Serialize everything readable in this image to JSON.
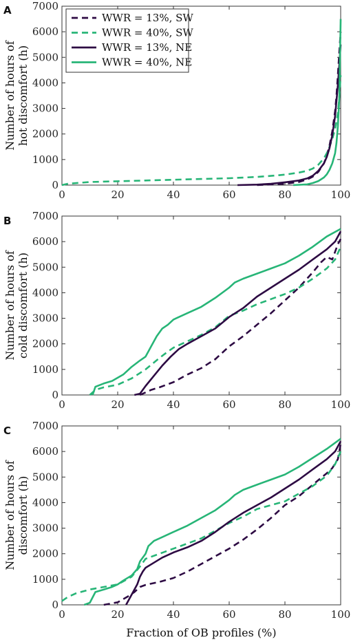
{
  "colors": {
    "dark_purple": "#2d0a43",
    "green": "#27b577"
  },
  "legend": {
    "placement": "top-left",
    "entries": [
      {
        "label": "WWR = 13%, SW",
        "color": "#2d0a43",
        "style": "dashed"
      },
      {
        "label": "WWR = 40%, SW",
        "color": "#27b577",
        "style": "dashed"
      },
      {
        "label": "WWR = 13%, NE",
        "color": "#2d0a43",
        "style": "solid"
      },
      {
        "label": "WWR = 40%, NE",
        "color": "#27b577",
        "style": "solid"
      }
    ]
  },
  "chart_data": [
    {
      "type": "line",
      "panel": "A",
      "ylabel_lines": [
        "Number of hours of",
        "hot discomfort (h)"
      ],
      "xlabel": "",
      "xlim": [
        0,
        100
      ],
      "ylim": [
        0,
        7000
      ],
      "xticks": [
        0,
        20,
        40,
        60,
        80,
        100
      ],
      "yticks": [
        0,
        1000,
        2000,
        3000,
        4000,
        5000,
        6000,
        7000
      ],
      "series": [
        {
          "name": "WWR = 13%, SW",
          "x": [
            70,
            80,
            85,
            88,
            90,
            92,
            94,
            95,
            96,
            97,
            98,
            98.5,
            99,
            99.5,
            100
          ],
          "y": [
            0,
            50,
            120,
            220,
            330,
            520,
            850,
            1150,
            1550,
            2100,
            2900,
            3500,
            4300,
            5200,
            6000
          ]
        },
        {
          "name": "WWR = 40%, SW",
          "x": [
            0,
            2,
            10,
            20,
            30,
            40,
            50,
            60,
            70,
            75,
            80,
            85,
            88,
            90,
            92,
            94,
            95,
            96,
            97,
            98,
            99,
            99.5,
            100
          ],
          "y": [
            0,
            50,
            120,
            150,
            180,
            210,
            240,
            270,
            320,
            360,
            410,
            490,
            560,
            650,
            800,
            1050,
            1250,
            1500,
            1800,
            2200,
            2800,
            3400,
            4300
          ]
        },
        {
          "name": "WWR = 13%, NE",
          "x": [
            63,
            70,
            75,
            80,
            85,
            88,
            90,
            92,
            94,
            95,
            96,
            97,
            98,
            98.5,
            99,
            99.5,
            100
          ],
          "y": [
            0,
            20,
            50,
            110,
            180,
            260,
            370,
            560,
            850,
            1100,
            1450,
            1950,
            2700,
            3300,
            3900,
            4700,
            5500
          ]
        },
        {
          "name": "WWR = 40%, NE",
          "x": [
            83,
            88,
            90,
            92,
            94,
            95,
            96,
            97,
            98,
            98.5,
            99,
            99.5,
            100
          ],
          "y": [
            0,
            30,
            80,
            160,
            300,
            420,
            600,
            850,
            1250,
            1650,
            2300,
            3400,
            6500
          ]
        }
      ]
    },
    {
      "type": "line",
      "panel": "B",
      "ylabel_lines": [
        "Number of hours of",
        "cold discomfort (h)"
      ],
      "xlabel": "",
      "xlim": [
        0,
        100
      ],
      "ylim": [
        0,
        7000
      ],
      "xticks": [
        0,
        20,
        40,
        60,
        80,
        100
      ],
      "yticks": [
        0,
        1000,
        2000,
        3000,
        4000,
        5000,
        6000,
        7000
      ],
      "series": [
        {
          "name": "WWR = 13%, SW",
          "x": [
            28,
            30,
            32,
            35,
            40,
            45,
            50,
            55,
            60,
            65,
            70,
            75,
            80,
            85,
            90,
            93,
            95,
            97,
            99,
            100
          ],
          "y": [
            0,
            100,
            200,
            300,
            500,
            800,
            1050,
            1400,
            1900,
            2300,
            2750,
            3200,
            3700,
            4200,
            4800,
            5200,
            5400,
            5300,
            5900,
            6100
          ]
        },
        {
          "name": "WWR = 40%, SW",
          "x": [
            10,
            12,
            15,
            20,
            25,
            30,
            35,
            38,
            40,
            45,
            50,
            55,
            60,
            65,
            70,
            75,
            80,
            85,
            90,
            95,
            98,
            100
          ],
          "y": [
            0,
            200,
            300,
            400,
            650,
            1000,
            1450,
            1700,
            1850,
            2100,
            2350,
            2650,
            3100,
            3300,
            3550,
            3750,
            3950,
            4200,
            4550,
            4950,
            5300,
            5800
          ]
        },
        {
          "name": "WWR = 13%, NE",
          "x": [
            26,
            28,
            30,
            33,
            36,
            39,
            42,
            45,
            50,
            55,
            60,
            65,
            70,
            75,
            80,
            85,
            90,
            95,
            98,
            100
          ],
          "y": [
            0,
            50,
            350,
            750,
            1150,
            1500,
            1800,
            2000,
            2300,
            2600,
            3050,
            3400,
            3850,
            4200,
            4550,
            4900,
            5300,
            5700,
            6000,
            6400
          ]
        },
        {
          "name": "WWR = 40%, NE",
          "x": [
            11,
            12,
            15,
            18,
            22,
            25,
            28,
            30,
            32,
            34,
            36,
            38,
            40,
            45,
            50,
            55,
            60,
            62,
            65,
            70,
            75,
            80,
            85,
            90,
            95,
            100
          ],
          "y": [
            0,
            320,
            450,
            550,
            800,
            1100,
            1350,
            1500,
            1900,
            2300,
            2600,
            2750,
            2950,
            3200,
            3450,
            3800,
            4200,
            4400,
            4550,
            4750,
            4950,
            5150,
            5450,
            5800,
            6200,
            6500
          ]
        }
      ]
    },
    {
      "type": "line",
      "panel": "C",
      "ylabel_lines": [
        "Number of hours of",
        "discomfort (h)"
      ],
      "xlabel": "Fraction of OB profiles (%)",
      "xlim": [
        0,
        100
      ],
      "ylim": [
        0,
        7000
      ],
      "xticks": [
        0,
        20,
        40,
        60,
        80,
        100
      ],
      "yticks": [
        0,
        1000,
        2000,
        3000,
        4000,
        5000,
        6000,
        7000
      ],
      "series": [
        {
          "name": "WWR = 13%, SW",
          "x": [
            15,
            20,
            24,
            26,
            27,
            28,
            30,
            35,
            40,
            45,
            50,
            55,
            60,
            65,
            70,
            75,
            80,
            85,
            90,
            95,
            97,
            99,
            100
          ],
          "y": [
            0,
            100,
            350,
            500,
            600,
            700,
            780,
            900,
            1050,
            1300,
            1600,
            1900,
            2200,
            2550,
            2950,
            3400,
            3900,
            4250,
            4700,
            5150,
            5350,
            5700,
            6300
          ]
        },
        {
          "name": "WWR = 40%, SW",
          "x": [
            0,
            2,
            5,
            10,
            15,
            20,
            25,
            28,
            30,
            35,
            40,
            45,
            50,
            55,
            60,
            65,
            70,
            75,
            80,
            85,
            90,
            95,
            98,
            100
          ],
          "y": [
            150,
            300,
            450,
            600,
            700,
            800,
            1100,
            1500,
            1800,
            2000,
            2200,
            2400,
            2600,
            2900,
            3200,
            3450,
            3750,
            3900,
            4050,
            4350,
            4650,
            5050,
            5500,
            6000
          ]
        },
        {
          "name": "WWR = 13%, NE",
          "x": [
            23,
            25,
            27,
            28,
            29,
            30,
            33,
            36,
            40,
            45,
            50,
            55,
            60,
            65,
            70,
            75,
            80,
            85,
            90,
            95,
            98,
            100
          ],
          "y": [
            0,
            400,
            800,
            1100,
            1300,
            1450,
            1650,
            1850,
            2050,
            2250,
            2500,
            2850,
            3250,
            3600,
            3900,
            4200,
            4550,
            4900,
            5300,
            5700,
            6000,
            6400
          ]
        },
        {
          "name": "WWR = 40%, NE",
          "x": [
            8,
            10,
            12,
            15,
            18,
            20,
            22,
            25,
            27,
            28,
            30,
            31,
            33,
            36,
            40,
            45,
            50,
            55,
            60,
            62,
            65,
            70,
            75,
            80,
            85,
            90,
            95,
            100
          ],
          "y": [
            0,
            80,
            500,
            600,
            700,
            800,
            950,
            1150,
            1400,
            1700,
            2000,
            2300,
            2500,
            2650,
            2850,
            3100,
            3400,
            3700,
            4100,
            4300,
            4500,
            4700,
            4900,
            5100,
            5400,
            5750,
            6100,
            6500
          ]
        }
      ]
    }
  ]
}
